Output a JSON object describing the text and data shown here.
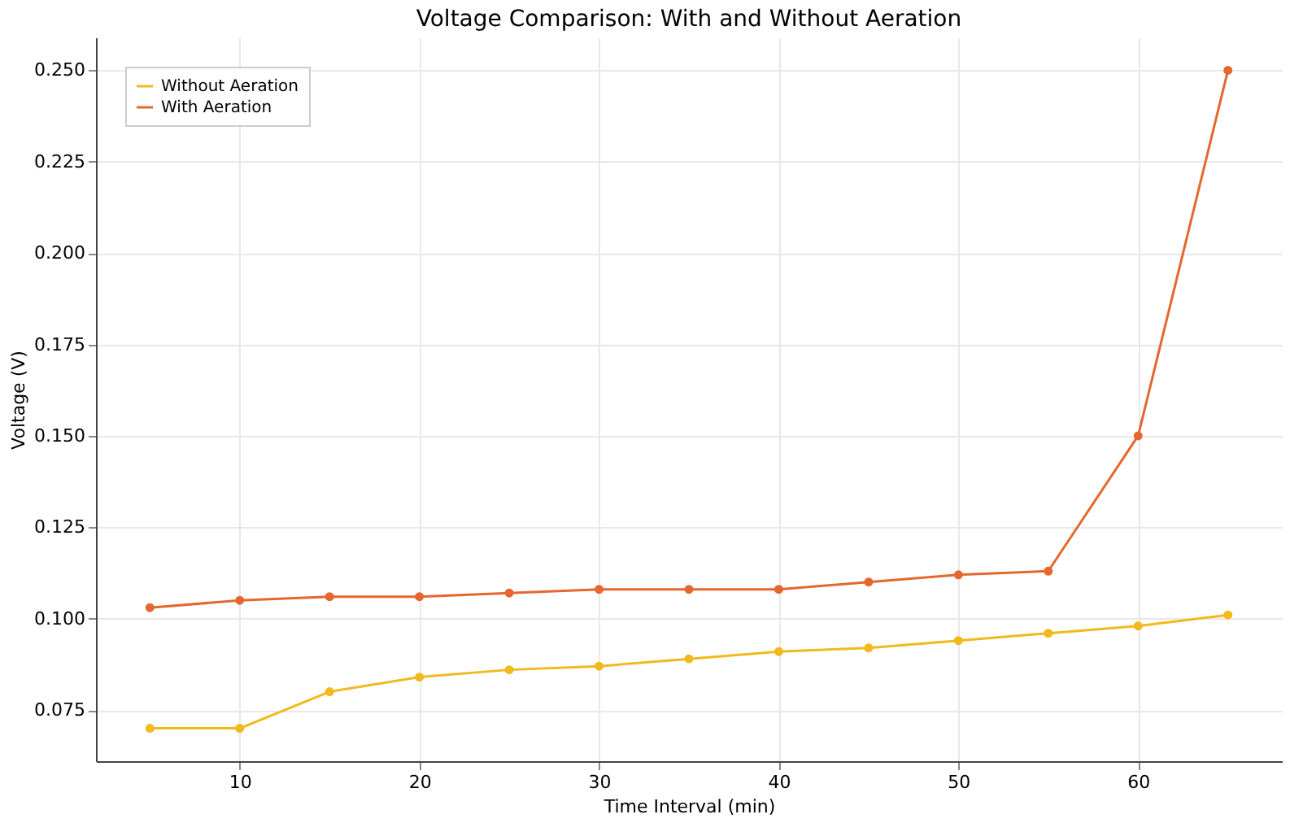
{
  "chart_data": {
    "type": "line",
    "title": "Voltage Comparison: With and Without Aeration",
    "xlabel": "Time Interval (min)",
    "ylabel": "Voltage (V)",
    "x": [
      5,
      10,
      15,
      20,
      25,
      30,
      35,
      40,
      45,
      50,
      55,
      60,
      65
    ],
    "series": [
      {
        "name": "Without Aeration",
        "color": "#f2b91c",
        "values": [
          0.07,
          0.07,
          0.08,
          0.084,
          0.086,
          0.087,
          0.089,
          0.091,
          0.092,
          0.094,
          0.096,
          0.098,
          0.101
        ]
      },
      {
        "name": "With Aeration",
        "color": "#e4672e",
        "values": [
          0.103,
          0.105,
          0.106,
          0.106,
          0.107,
          0.108,
          0.108,
          0.108,
          0.11,
          0.112,
          0.113,
          0.15,
          0.25
        ]
      }
    ],
    "xlim": [
      2,
      68
    ],
    "xticks": [
      10,
      20,
      30,
      40,
      50,
      60
    ],
    "ylim": [
      0.061,
      0.259
    ],
    "yticks": [
      0.075,
      {
        "value": 0.1,
        "label": "0.100"
      },
      0.125,
      {
        "value": 0.15,
        "label": "0.150"
      },
      0.175,
      {
        "value": 0.2,
        "label": "0.200"
      },
      0.225,
      {
        "value": 0.25,
        "label": "0.250"
      }
    ],
    "grid": true,
    "legend": "top left",
    "marker": "circle",
    "line_style": "solid"
  }
}
